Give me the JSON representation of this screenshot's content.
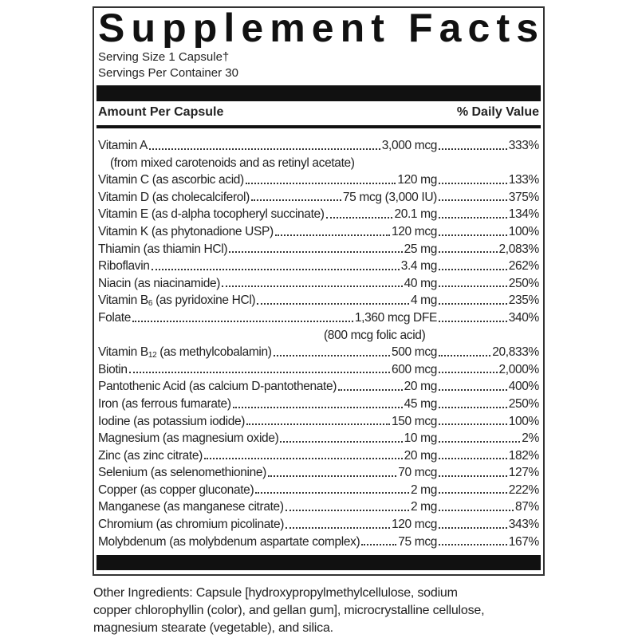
{
  "header": {
    "title": "Supplement Facts",
    "serving_size": "Serving Size 1 Capsule†",
    "servings_per_container": "Servings Per Container 30"
  },
  "table": {
    "columns": [
      "Amount Per Capsule",
      "% Daily Value"
    ],
    "rows": [
      {
        "name": "Vitamin A",
        "amount": "3,000 mcg",
        "daily_value": "333%",
        "name_note": "(from mixed carotenoids and as retinyl acetate)"
      },
      {
        "name": "Vitamin C (as ascorbic acid)",
        "amount": "120 mg",
        "daily_value": "133%"
      },
      {
        "name": "Vitamin D (as cholecalciferol)",
        "amount": "75 mcg (3,000 IU)",
        "daily_value": "375%"
      },
      {
        "name": "Vitamin E (as d-alpha tocopheryl succinate)",
        "amount": "20.1 mg",
        "daily_value": "134%"
      },
      {
        "name": "Vitamin K (as phytonadione USP)",
        "amount": "120 mcg",
        "daily_value": "100%"
      },
      {
        "name": "Thiamin (as thiamin HCl)",
        "amount": "25 mg",
        "daily_value": "2,083%"
      },
      {
        "name": "Riboflavin",
        "amount": "3.4 mg",
        "daily_value": "262%"
      },
      {
        "name": "Niacin (as niacinamide)",
        "amount": "40 mg",
        "daily_value": "250%"
      },
      {
        "name": "Vitamin B",
        "subscript": "6",
        "name_suffix": " (as pyridoxine HCl)",
        "amount": "4 mg",
        "daily_value": "235%"
      },
      {
        "name": "Folate",
        "amount": "1,360 mcg DFE",
        "daily_value": "340%",
        "amount_note": "(800 mcg folic acid)"
      },
      {
        "name": "Vitamin B",
        "subscript": "12",
        "name_suffix": " (as methylcobalamin)",
        "amount": "500 mcg",
        "daily_value": "20,833%"
      },
      {
        "name": "Biotin",
        "amount": "600 mcg",
        "daily_value": "2,000%"
      },
      {
        "name": "Pantothenic Acid (as calcium D-pantothenate)",
        "amount": "20 mg",
        "daily_value": "400%"
      },
      {
        "name": "Iron (as ferrous fumarate)",
        "amount": "45 mg",
        "daily_value": "250%"
      },
      {
        "name": "Iodine (as potassium iodide)",
        "amount": "150 mcg",
        "daily_value": "100%"
      },
      {
        "name": "Magnesium (as magnesium oxide)",
        "amount": "10 mg",
        "daily_value": "2%"
      },
      {
        "name": "Zinc (as zinc citrate)",
        "amount": "20 mg",
        "daily_value": "182%"
      },
      {
        "name": "Selenium (as selenomethionine)",
        "amount": "70 mcg",
        "daily_value": "127%"
      },
      {
        "name": "Copper (as copper gluconate)",
        "amount": "2 mg",
        "daily_value": "222%"
      },
      {
        "name": "Manganese (as manganese citrate)",
        "amount": "2 mg",
        "daily_value": "87%"
      },
      {
        "name": "Chromium (as chromium picolinate)",
        "amount": "120 mcg",
        "daily_value": "343%"
      },
      {
        "name": "Molybdenum (as molybdenum aspartate complex)",
        "amount": "75 mcg",
        "daily_value": "167%"
      }
    ]
  },
  "footer": {
    "other_ingredients": [
      "Other Ingredients: Capsule [hydroxypropylmethylcellulose, sodium",
      "copper chlorophyllin (color), and gellan gum], microcrystalline cellulose,",
      "magnesium stearate (vegetable), and silica."
    ]
  }
}
